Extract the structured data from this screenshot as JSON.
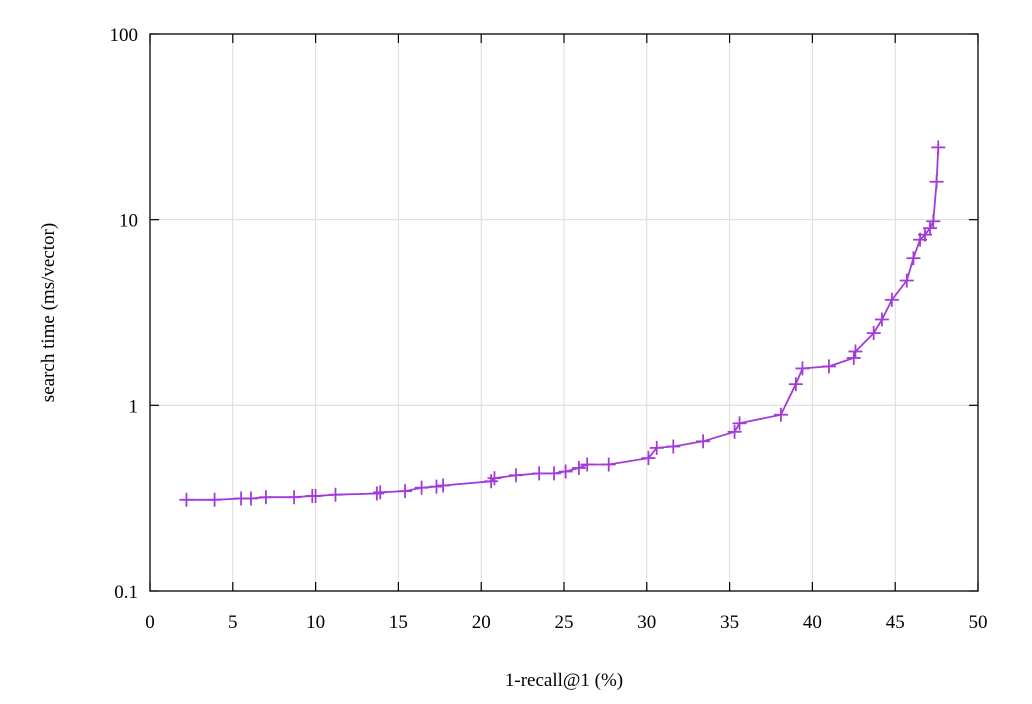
{
  "chart_data": {
    "type": "line",
    "title": "",
    "xlabel": "1-recall@1 (%)",
    "ylabel": "search time (ms/vector)",
    "xlim": [
      0,
      50
    ],
    "ylim": [
      0.1,
      100
    ],
    "yscale": "log",
    "grid": true,
    "legend": "none",
    "xticks": [
      0,
      5,
      10,
      15,
      20,
      25,
      30,
      35,
      40,
      45,
      50
    ],
    "xtick_labels": [
      "0",
      "5",
      "10",
      "15",
      "20",
      "25",
      "30",
      "35",
      "40",
      "45",
      "50"
    ],
    "yticks": [
      0.1,
      1,
      10,
      100
    ],
    "ytick_labels": [
      "0.1",
      "1",
      "10",
      "100"
    ],
    "series": [
      {
        "color": "#a23cd8",
        "marker": "plus",
        "points": [
          [
            2.2,
            0.31
          ],
          [
            3.9,
            0.31
          ],
          [
            5.5,
            0.315
          ],
          [
            6.1,
            0.315
          ],
          [
            7.0,
            0.32
          ],
          [
            8.7,
            0.32
          ],
          [
            9.8,
            0.325
          ],
          [
            10.0,
            0.325
          ],
          [
            11.2,
            0.33
          ],
          [
            13.7,
            0.335
          ],
          [
            13.9,
            0.34
          ],
          [
            15.4,
            0.345
          ],
          [
            16.4,
            0.36
          ],
          [
            17.3,
            0.365
          ],
          [
            17.7,
            0.37
          ],
          [
            20.6,
            0.39
          ],
          [
            20.8,
            0.405
          ],
          [
            22.1,
            0.42
          ],
          [
            23.5,
            0.43
          ],
          [
            24.4,
            0.43
          ],
          [
            25.1,
            0.44
          ],
          [
            25.9,
            0.46
          ],
          [
            26.4,
            0.48
          ],
          [
            27.7,
            0.48
          ],
          [
            30.1,
            0.52
          ],
          [
            30.6,
            0.59
          ],
          [
            31.6,
            0.6
          ],
          [
            33.4,
            0.64
          ],
          [
            35.3,
            0.72
          ],
          [
            35.6,
            0.8
          ],
          [
            38.1,
            0.89
          ],
          [
            39.0,
            1.3
          ],
          [
            39.4,
            1.58
          ],
          [
            41.0,
            1.62
          ],
          [
            42.5,
            1.8
          ],
          [
            42.6,
            1.95
          ],
          [
            43.7,
            2.45
          ],
          [
            44.2,
            2.9
          ],
          [
            44.8,
            3.7
          ],
          [
            45.7,
            4.7
          ],
          [
            46.1,
            6.2
          ],
          [
            46.5,
            7.8
          ],
          [
            46.8,
            8.3
          ],
          [
            47.1,
            9.0
          ],
          [
            47.3,
            9.8
          ],
          [
            47.5,
            16.0
          ],
          [
            47.6,
            24.5
          ]
        ]
      }
    ]
  }
}
